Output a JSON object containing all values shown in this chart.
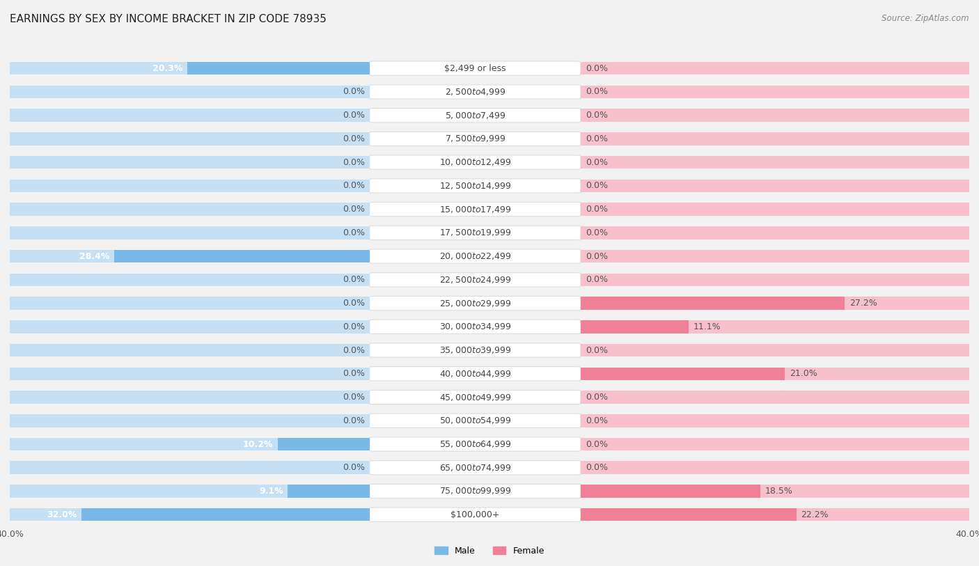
{
  "title": "EARNINGS BY SEX BY INCOME BRACKET IN ZIP CODE 78935",
  "source": "Source: ZipAtlas.com",
  "categories": [
    "$2,499 or less",
    "$2,500 to $4,999",
    "$5,000 to $7,499",
    "$7,500 to $9,999",
    "$10,000 to $12,499",
    "$12,500 to $14,999",
    "$15,000 to $17,499",
    "$17,500 to $19,999",
    "$20,000 to $22,499",
    "$22,500 to $24,999",
    "$25,000 to $29,999",
    "$30,000 to $34,999",
    "$35,000 to $39,999",
    "$40,000 to $44,999",
    "$45,000 to $49,999",
    "$50,000 to $54,999",
    "$55,000 to $64,999",
    "$65,000 to $74,999",
    "$75,000 to $99,999",
    "$100,000+"
  ],
  "male_values": [
    20.3,
    0.0,
    0.0,
    0.0,
    0.0,
    0.0,
    0.0,
    0.0,
    28.4,
    0.0,
    0.0,
    0.0,
    0.0,
    0.0,
    0.0,
    0.0,
    10.2,
    0.0,
    9.1,
    32.0
  ],
  "female_values": [
    0.0,
    0.0,
    0.0,
    0.0,
    0.0,
    0.0,
    0.0,
    0.0,
    0.0,
    0.0,
    27.2,
    11.1,
    0.0,
    21.0,
    0.0,
    0.0,
    0.0,
    0.0,
    18.5,
    22.2
  ],
  "male_color": "#7ab8e8",
  "female_color": "#f08098",
  "male_color_light": "#c5dff5",
  "female_color_light": "#f8c0cc",
  "axis_max": 40.0,
  "bg_color": "#f2f2f2",
  "row_color_odd": "#ffffff",
  "row_color_even": "#e8e8e8",
  "label_fontsize": 9.0,
  "category_fontsize": 9.0,
  "title_fontsize": 11,
  "source_fontsize": 8.5,
  "value_color": "#555555",
  "cat_label_color": "#444444",
  "center_pill_bg": "#ffffff",
  "center_pill_border": "#dddddd"
}
